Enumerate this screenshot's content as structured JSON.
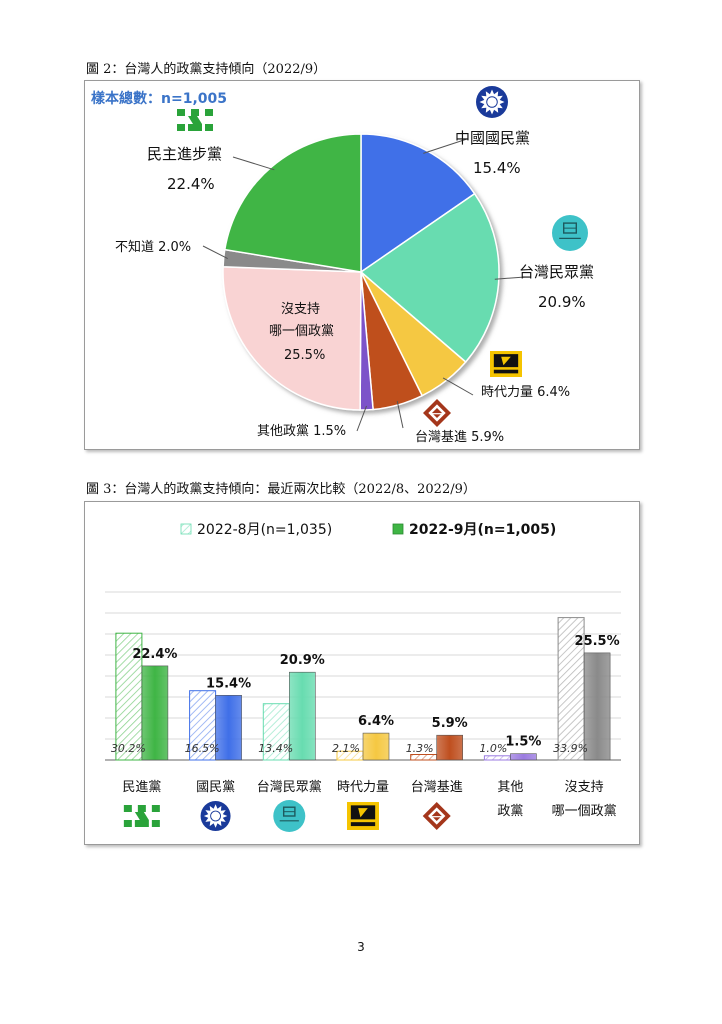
{
  "captions": {
    "figure2": "圖 2：台灣人的政黨支持傾向（2022/9）",
    "figure3": "圖 3：台灣人的政黨支持傾向：最近兩次比較（2022/8、2022/9）"
  },
  "page_number": "3",
  "chart_data": [
    {
      "type": "pie",
      "sample_label": "樣本總數：n=1,005",
      "slices": [
        {
          "label": "中國國民黨",
          "value": 15.4,
          "value_label": "15.4%",
          "color": "#3f6fe8"
        },
        {
          "label": "台灣民眾黨",
          "value": 20.9,
          "value_label": "20.9%",
          "color": "#68dcb0"
        },
        {
          "label": "時代力量",
          "value": 6.4,
          "value_label": "6.4%",
          "color": "#f5c842"
        },
        {
          "label": "台灣基進",
          "value": 5.9,
          "value_label": "5.9%",
          "color": "#bf4f1f"
        },
        {
          "label": "其他政黨",
          "value": 1.5,
          "value_label": "1.5%",
          "color": "#7b52c9"
        },
        {
          "label": "沒支持哪一個政黨",
          "label_lines": [
            "沒支持",
            "哪一個政黨"
          ],
          "value": 25.5,
          "value_label": "25.5%",
          "color": "#f9d3d3"
        },
        {
          "label": "不知道",
          "value": 2.0,
          "value_label": "2.0%",
          "color": "#8a8a8a"
        },
        {
          "label": "民主進步黨",
          "value": 22.4,
          "value_label": "22.4%",
          "color": "#3fb545"
        }
      ]
    },
    {
      "type": "bar",
      "legend": [
        "2022-8月(n=1,035)",
        "2022-9月(n=1,005)"
      ],
      "categories": [
        "民進黨",
        "國民黨",
        "台灣民眾黨",
        "時代力量",
        "台灣基進",
        "其他政黨",
        "沒支持哪一個政黨"
      ],
      "category_lines": [
        [
          "民進黨"
        ],
        [
          "國民黨"
        ],
        [
          "台灣民眾黨"
        ],
        [
          "時代力量"
        ],
        [
          "台灣基進"
        ],
        [
          "其他",
          "政黨"
        ],
        [
          "沒支持",
          "哪一個政黨"
        ]
      ],
      "series": [
        {
          "name": "2022-8月(n=1,035)",
          "values": [
            30.2,
            16.5,
            13.4,
            2.1,
            1.3,
            1.0,
            33.9
          ],
          "value_labels": [
            "30.2%",
            "16.5%",
            "13.4%",
            "2.1%",
            "1.3%",
            "1.0%",
            "33.9%"
          ]
        },
        {
          "name": "2022-9月(n=1,005)",
          "values": [
            22.4,
            15.4,
            20.9,
            6.4,
            5.9,
            1.5,
            25.5
          ],
          "value_labels": [
            "22.4%",
            "15.4%",
            "20.9%",
            "6.4%",
            "5.9%",
            "1.5%",
            "25.5%"
          ]
        }
      ],
      "colors": [
        "#3fb545",
        "#3f6fe8",
        "#68dcb0",
        "#f5c842",
        "#bf4f1f",
        "#9b7be0",
        "#8a8a8a"
      ],
      "ylim": [
        0,
        40
      ],
      "grid": true
    }
  ],
  "logos": {
    "dpp": "dpp-logo-icon",
    "kmt": "kmt-logo-icon",
    "tpp": "tpp-logo-icon",
    "npp": "npp-logo-icon",
    "tsp": "tsp-logo-icon"
  }
}
